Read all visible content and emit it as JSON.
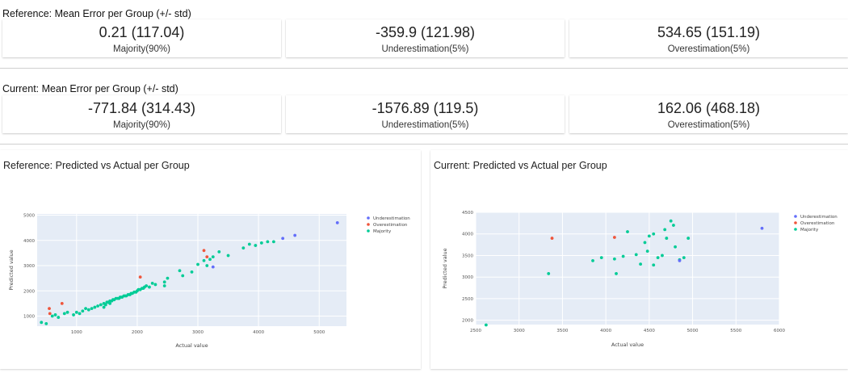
{
  "reference": {
    "title": "Reference: Mean Error per Group (+/- std)",
    "cards": [
      {
        "value": "0.21 (117.04)",
        "label": "Majority(90%)"
      },
      {
        "value": "-359.9 (121.98)",
        "label": "Underestimation(5%)"
      },
      {
        "value": "534.65 (151.19)",
        "label": "Overestimation(5%)"
      }
    ]
  },
  "current": {
    "title": "Current: Mean Error per Group (+/- std)",
    "cards": [
      {
        "value": "-771.84 (314.43)",
        "label": "Majority(90%)"
      },
      {
        "value": "-1576.89 (119.5)",
        "label": "Underestimation(5%)"
      },
      {
        "value": "162.06 (468.18)",
        "label": "Overestimation(5%)"
      }
    ]
  },
  "colors": {
    "underestimation": "#636efa",
    "overestimation": "#ef553b",
    "majority": "#00cc96"
  },
  "chart_data": [
    {
      "type": "scatter",
      "title": "Reference: Predicted vs Actual per Group",
      "xlabel": "Actual value",
      "ylabel": "Predicted value",
      "xlim": [
        350,
        5450
      ],
      "ylim": [
        600,
        5050
      ],
      "xticks": [
        1000,
        2000,
        3000,
        4000,
        5000
      ],
      "yticks": [
        1000,
        2000,
        3000,
        4000,
        5000
      ],
      "legend_position": "top-right",
      "series": [
        {
          "name": "Underestimation",
          "color_key": "underestimation",
          "x": [
            3250,
            4400,
            4600,
            5300
          ],
          "y": [
            2950,
            4080,
            4200,
            4700
          ]
        },
        {
          "name": "Overestimation",
          "color_key": "overestimation",
          "x": [
            550,
            560,
            760,
            2050,
            3100,
            3150
          ],
          "y": [
            1300,
            1100,
            1500,
            2550,
            3600,
            3350
          ]
        },
        {
          "name": "Majority",
          "color_key": "majority",
          "x": [
            420,
            500,
            600,
            650,
            700,
            800,
            850,
            950,
            1000,
            1050,
            1100,
            1150,
            1200,
            1250,
            1300,
            1350,
            1400,
            1450,
            1500,
            1550,
            1600,
            1650,
            1700,
            1750,
            1800,
            1850,
            1900,
            1950,
            2000,
            2050,
            2100,
            2150,
            2200,
            2250,
            2300,
            2450,
            2500,
            2700,
            2750,
            2900,
            3000,
            3100,
            3200,
            3350,
            3500,
            3750,
            3850,
            3950,
            4050,
            4150,
            4250,
            1520,
            1620,
            1720,
            1820,
            1920,
            2020,
            2120,
            1480,
            1580,
            1680,
            1780,
            1880,
            1980,
            2080,
            1450,
            1550,
            2450,
            3150,
            3250
          ],
          "y": [
            750,
            700,
            1000,
            1050,
            950,
            1100,
            1150,
            1050,
            1150,
            1100,
            1200,
            1300,
            1250,
            1300,
            1350,
            1400,
            1450,
            1500,
            1550,
            1600,
            1650,
            1700,
            1700,
            1750,
            1800,
            1850,
            1900,
            1950,
            2000,
            2050,
            2100,
            2200,
            2150,
            2300,
            2250,
            2350,
            2500,
            2800,
            2600,
            2750,
            3050,
            3200,
            3250,
            3550,
            3400,
            3700,
            3850,
            3800,
            3900,
            3950,
            3950,
            1550,
            1650,
            1750,
            1800,
            1900,
            2050,
            2150,
            1450,
            1600,
            1700,
            1800,
            1850,
            1950,
            2100,
            1350,
            1500,
            2200,
            3000,
            3350
          ]
        }
      ]
    },
    {
      "type": "scatter",
      "title": "Current: Predicted vs Actual per Group",
      "xlabel": "Actual value",
      "ylabel": "Predicted value",
      "xlim": [
        2500,
        6000
      ],
      "ylim": [
        1900,
        4500
      ],
      "xticks": [
        2500,
        3000,
        3500,
        4000,
        4500,
        5000,
        5500,
        6000
      ],
      "yticks": [
        2000,
        2500,
        3000,
        3500,
        4000,
        4500
      ],
      "legend_position": "top-right",
      "series": [
        {
          "name": "Underestimation",
          "color_key": "underestimation",
          "x": [
            4850,
            5800
          ],
          "y": [
            3380,
            4130
          ]
        },
        {
          "name": "Overestimation",
          "color_key": "overestimation",
          "x": [
            3380,
            4100
          ],
          "y": [
            3900,
            3920
          ]
        },
        {
          "name": "Majority",
          "color_key": "majority",
          "x": [
            2620,
            3340,
            3850,
            3950,
            4100,
            4120,
            4200,
            4250,
            4350,
            4400,
            4450,
            4500,
            4550,
            4600,
            4650,
            4700,
            4750,
            4800,
            4850,
            4900,
            4950,
            4550,
            4480,
            4680,
            4780
          ],
          "y": [
            1890,
            3080,
            3380,
            3450,
            3420,
            3080,
            3480,
            4050,
            3520,
            3300,
            3800,
            3950,
            4000,
            3450,
            3500,
            3900,
            4300,
            3700,
            3400,
            3450,
            3900,
            3280,
            3600,
            4100,
            4200
          ]
        }
      ]
    }
  ]
}
